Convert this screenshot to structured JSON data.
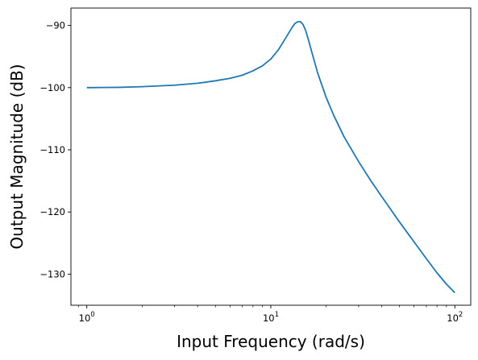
{
  "chart_data": {
    "type": "line",
    "title": "",
    "xlabel": "Input Frequency (rad/s)",
    "ylabel": "Output Magnitude (dB)",
    "xscale": "log",
    "xlim": [
      0.82,
      122
    ],
    "ylim": [
      -135,
      -87.2
    ],
    "grid": false,
    "legend": "none",
    "xticks": [
      {
        "value": 1,
        "base": "10",
        "exp": "0"
      },
      {
        "value": 10,
        "base": "10",
        "exp": "1"
      },
      {
        "value": 100,
        "base": "10",
        "exp": "2"
      }
    ],
    "yticks": [
      {
        "value": -90,
        "label": "−90"
      },
      {
        "value": -100,
        "label": "−100"
      },
      {
        "value": -110,
        "label": "−110"
      },
      {
        "value": -120,
        "label": "−120"
      },
      {
        "value": -130,
        "label": "−130"
      }
    ],
    "series": [
      {
        "color": "#1f77b4",
        "x": [
          1,
          1.5,
          2,
          3,
          4,
          5,
          6,
          7,
          8,
          9,
          10,
          11,
          12,
          13,
          13.5,
          14,
          14.5,
          15,
          15.5,
          16,
          17,
          18,
          20,
          22,
          25,
          30,
          35,
          40,
          50,
          60,
          70,
          80,
          90,
          100
        ],
        "y": [
          -100,
          -99.95,
          -99.85,
          -99.6,
          -99.3,
          -98.9,
          -98.5,
          -98,
          -97.3,
          -96.5,
          -95.4,
          -93.9,
          -92.1,
          -90.4,
          -89.7,
          -89.4,
          -89.4,
          -89.9,
          -90.9,
          -92.3,
          -95.1,
          -97.7,
          -101.6,
          -104.5,
          -107.9,
          -111.9,
          -115,
          -117.5,
          -121.6,
          -124.8,
          -127.5,
          -129.8,
          -131.6,
          -133
        ]
      }
    ]
  }
}
